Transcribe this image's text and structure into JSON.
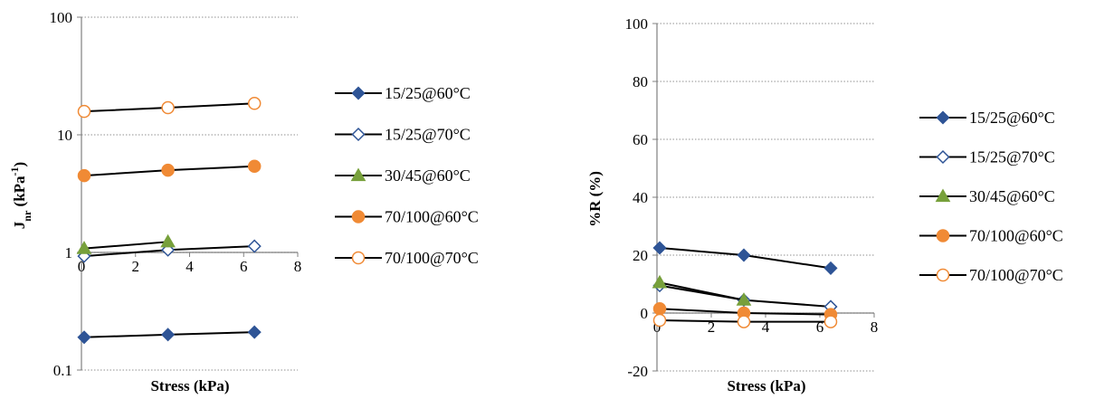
{
  "colors": {
    "blue": "#2e5496",
    "green": "#77a03b",
    "orange": "#f08a35",
    "line": "#000000",
    "grid": "#a6a6a6"
  },
  "chart_data": [
    {
      "type": "line",
      "xlabel": "Stress (kPa)",
      "ylabel_main": "J",
      "ylabel_sub": "nr",
      "ylabel_unit_pre": " (kPa",
      "ylabel_unit_sup": "-1",
      "ylabel_unit_post": ")",
      "yscale": "log",
      "xlim": [
        0,
        8
      ],
      "ylim": [
        0.1,
        100
      ],
      "xticks": [
        "0",
        "2",
        "4",
        "6",
        "8"
      ],
      "yticks": [
        "0.1",
        "1",
        "10",
        "100"
      ],
      "x_at_y_crossing": 1,
      "grid": "horizontal dotted",
      "legend_position": "right",
      "series": [
        {
          "name": "15/25@60°C",
          "marker": "diamond-filled",
          "color": "blue",
          "x": [
            0.1,
            3.2,
            6.4
          ],
          "y": [
            0.19,
            0.2,
            0.21
          ]
        },
        {
          "name": "15/25@70°C",
          "marker": "diamond-open",
          "color": "blue",
          "x": [
            0.1,
            3.2,
            6.4
          ],
          "y": [
            0.93,
            1.05,
            1.13
          ]
        },
        {
          "name": "30/45@60°C",
          "marker": "triangle-filled",
          "color": "green",
          "x": [
            0.1,
            3.2
          ],
          "y": [
            1.08,
            1.23
          ]
        },
        {
          "name": "70/100@60°C",
          "marker": "circle-filled",
          "color": "orange",
          "x": [
            0.1,
            3.2,
            6.4
          ],
          "y": [
            4.5,
            5.0,
            5.4
          ]
        },
        {
          "name": "70/100@70°C",
          "marker": "circle-open",
          "color": "orange",
          "x": [
            0.1,
            3.2,
            6.4
          ],
          "y": [
            15.8,
            17.0,
            18.5
          ]
        }
      ]
    },
    {
      "type": "line",
      "xlabel": "Stress (kPa)",
      "ylabel": "%R (%)",
      "yscale": "linear",
      "xlim": [
        0,
        8
      ],
      "ylim": [
        -20,
        100
      ],
      "xticks": [
        "0",
        "2",
        "4",
        "6",
        "8"
      ],
      "yticks": [
        "-20",
        "0",
        "20",
        "40",
        "60",
        "80",
        "100"
      ],
      "grid": "horizontal dotted",
      "legend_position": "right",
      "series": [
        {
          "name": "15/25@60°C",
          "marker": "diamond-filled",
          "color": "blue",
          "x": [
            0.1,
            3.2,
            6.4
          ],
          "y": [
            22.5,
            20.0,
            15.5
          ]
        },
        {
          "name": "15/25@70°C",
          "marker": "diamond-open",
          "color": "blue",
          "x": [
            0.1,
            3.2,
            6.4
          ],
          "y": [
            9.5,
            4.5,
            2.2
          ]
        },
        {
          "name": "30/45@60°C",
          "marker": "triangle-filled",
          "color": "green",
          "x": [
            0.1,
            3.2
          ],
          "y": [
            10.5,
            4.5
          ]
        },
        {
          "name": "70/100@60°C",
          "marker": "circle-filled",
          "color": "orange",
          "x": [
            0.1,
            3.2,
            6.4
          ],
          "y": [
            1.5,
            0.0,
            -0.5
          ]
        },
        {
          "name": "70/100@70°C",
          "marker": "circle-open",
          "color": "orange",
          "x": [
            0.1,
            3.2,
            6.4
          ],
          "y": [
            -2.5,
            -3.0,
            -3.0
          ]
        }
      ]
    }
  ]
}
